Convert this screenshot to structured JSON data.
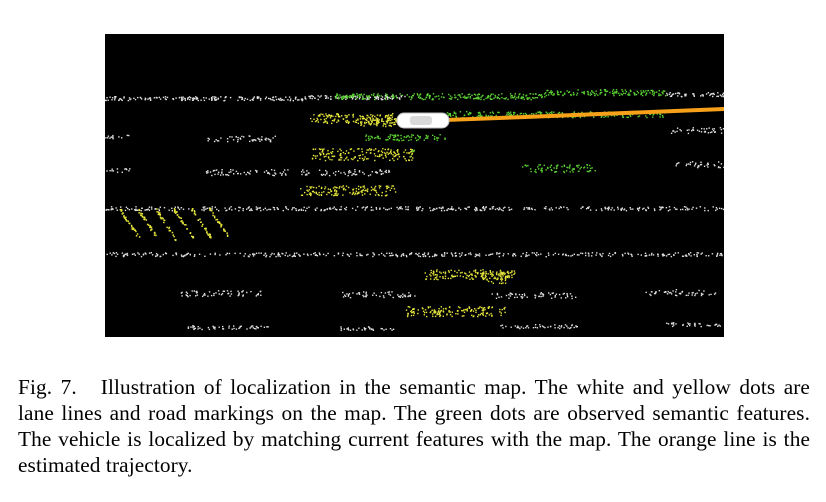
{
  "figure": {
    "label": "Fig. 7.",
    "caption": "Illustration of localization in the semantic map. The white and yellow dots are lane lines and road markings on the map. The green dots are observed semantic features. The vehicle is localized by matching current features with the map. The orange line is the estimated trajectory.",
    "colors": {
      "background": "#000000",
      "map_lane_lines": "#e0e0e0",
      "map_road_markings": "#e6e63c",
      "observed_features": "#5ad232",
      "trajectory": "#f7a11a",
      "vehicle": "#ffffff"
    }
  }
}
